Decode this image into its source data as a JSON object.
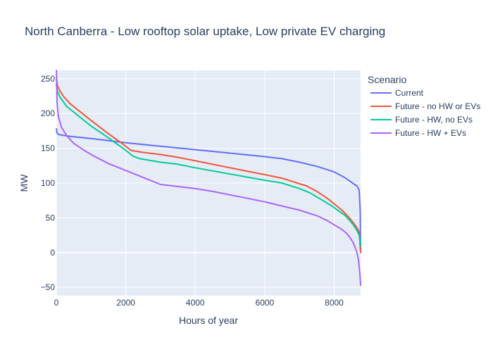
{
  "chart_data": {
    "type": "line",
    "title": "North Canberra - Low rooftop solar uptake, Low private EV charging",
    "xlabel": "Hours of year",
    "ylabel": "MW",
    "xlim": [
      0,
      8760
    ],
    "ylim": [
      -62,
      262
    ],
    "x_ticks": [
      0,
      2000,
      4000,
      6000,
      8000
    ],
    "y_ticks": [
      -50,
      0,
      50,
      100,
      150,
      200,
      250
    ],
    "grid": true,
    "legend": {
      "title": "Scenario",
      "position": "right"
    },
    "series": [
      {
        "name": "Current",
        "color": "#636efa",
        "x": [
          0,
          20,
          60,
          150,
          400,
          1000,
          2000,
          3000,
          4000,
          5000,
          6000,
          6500,
          7000,
          7500,
          8000,
          8300,
          8500,
          8650,
          8720,
          8750,
          8760
        ],
        "y": [
          178,
          172,
          170,
          169,
          167,
          164,
          158,
          153,
          148,
          143,
          138,
          135,
          130,
          124,
          116,
          108,
          101,
          96,
          90,
          60,
          0
        ]
      },
      {
        "name": "Future - no HW or EVs",
        "color": "#ef553b",
        "x": [
          0,
          30,
          100,
          200,
          400,
          700,
          1000,
          1500,
          2000,
          2150,
          2500,
          3000,
          3500,
          4000,
          5000,
          6000,
          6500,
          7000,
          7200,
          7500,
          7800,
          8000,
          8200,
          8400,
          8550,
          8650,
          8720,
          8760
        ],
        "y": [
          252,
          240,
          233,
          225,
          214,
          202,
          190,
          171,
          153,
          147,
          144,
          141,
          137,
          132,
          122,
          112,
          107,
          99,
          96,
          88,
          78,
          70,
          62,
          52,
          43,
          36,
          30,
          0
        ]
      },
      {
        "name": "Future - HW, no EVs",
        "color": "#00cc96",
        "x": [
          0,
          30,
          100,
          300,
          500,
          800,
          1000,
          1500,
          2000,
          2200,
          2400,
          3000,
          3500,
          4000,
          5000,
          6000,
          6500,
          7000,
          7300,
          7600,
          7900,
          8100,
          8300,
          8450,
          8550,
          8650,
          8720,
          8760
        ],
        "y": [
          242,
          232,
          224,
          210,
          202,
          190,
          182,
          165,
          147,
          139,
          135,
          130,
          127,
          122,
          113,
          104,
          100,
          92,
          86,
          77,
          68,
          61,
          54,
          46,
          40,
          32,
          25,
          10
        ]
      },
      {
        "name": "Future - HW + EVs",
        "color": "#ab63fa",
        "x": [
          0,
          20,
          60,
          150,
          300,
          500,
          800,
          1000,
          1500,
          2000,
          2500,
          3000,
          3500,
          4000,
          4500,
          5000,
          5500,
          6000,
          6500,
          7000,
          7500,
          7800,
          8000,
          8200,
          8350,
          8450,
          8550,
          8650,
          8700,
          8740,
          8760
        ],
        "y": [
          262,
          215,
          195,
          180,
          168,
          157,
          147,
          141,
          128,
          118,
          108,
          98,
          95,
          92,
          88,
          83,
          78,
          73,
          67,
          61,
          53,
          46,
          40,
          34,
          28,
          22,
          14,
          1,
          -10,
          -30,
          -47
        ]
      }
    ]
  }
}
